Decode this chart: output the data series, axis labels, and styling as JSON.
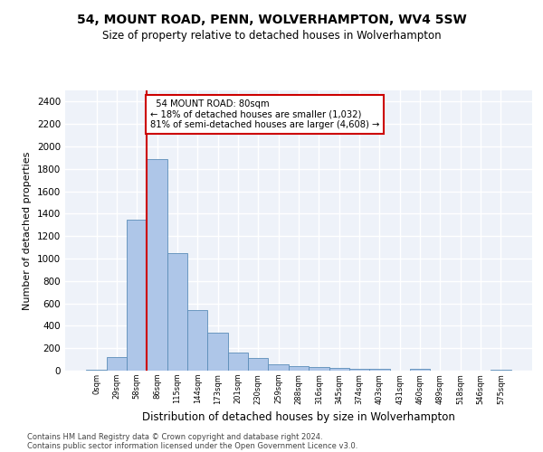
{
  "title1": "54, MOUNT ROAD, PENN, WOLVERHAMPTON, WV4 5SW",
  "title2": "Size of property relative to detached houses in Wolverhampton",
  "xlabel": "Distribution of detached houses by size in Wolverhampton",
  "ylabel": "Number of detached properties",
  "footer1": "Contains HM Land Registry data © Crown copyright and database right 2024.",
  "footer2": "Contains public sector information licensed under the Open Government Licence v3.0.",
  "bar_color": "#aec6e8",
  "bar_edge_color": "#5b8db8",
  "annotation_box_color": "#cc0000",
  "vline_color": "#cc0000",
  "background_color": "#eef2f9",
  "grid_color": "#ffffff",
  "categories": [
    "0sqm",
    "29sqm",
    "58sqm",
    "86sqm",
    "115sqm",
    "144sqm",
    "173sqm",
    "201sqm",
    "230sqm",
    "259sqm",
    "288sqm",
    "316sqm",
    "345sqm",
    "374sqm",
    "403sqm",
    "431sqm",
    "460sqm",
    "489sqm",
    "518sqm",
    "546sqm",
    "575sqm"
  ],
  "values": [
    10,
    125,
    1345,
    1890,
    1045,
    540,
    335,
    160,
    110,
    60,
    40,
    30,
    25,
    20,
    15,
    0,
    20,
    0,
    0,
    0,
    10
  ],
  "vline_x": 2.5,
  "annotation_text": "  54 MOUNT ROAD: 80sqm\n← 18% of detached houses are smaller (1,032)\n81% of semi-detached houses are larger (4,608) →",
  "ylim": [
    0,
    2500
  ],
  "yticks": [
    0,
    200,
    400,
    600,
    800,
    1000,
    1200,
    1400,
    1600,
    1800,
    2000,
    2200,
    2400
  ],
  "figsize": [
    6.0,
    5.0
  ],
  "dpi": 100,
  "title1_fontsize": 10,
  "title2_fontsize": 8.5,
  "ylabel_fontsize": 8,
  "xlabel_fontsize": 8.5,
  "footer_fontsize": 6
}
